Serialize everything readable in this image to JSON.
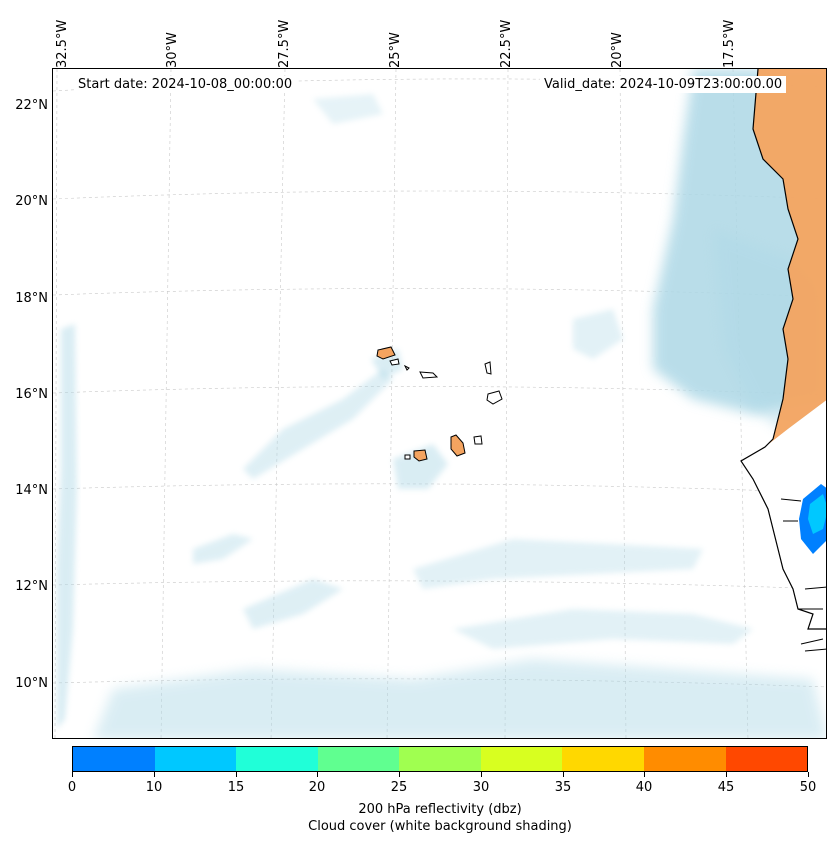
{
  "map": {
    "start_date": "Start date: 2024-10-08_00:00:00",
    "valid_date": "Valid_date: 2024-10-09T23:00:00.00",
    "lon_labels": [
      "32.5°W",
      "30°W",
      "27.5°W",
      "25°W",
      "22.5°W",
      "20°W",
      "17.5°W"
    ],
    "lat_labels": [
      "22°N",
      "20°N",
      "18°N",
      "16°N",
      "14°N",
      "12°N",
      "10°N"
    ],
    "land_color": "#f4a460",
    "cloud_color": "#add8e6",
    "coast_color": "#000000"
  },
  "colorbar": {
    "ticks": [
      "0",
      "10",
      "15",
      "20",
      "25",
      "30",
      "35",
      "40",
      "45",
      "50"
    ],
    "colors": [
      "#0080ff",
      "#00c8ff",
      "#20ffd8",
      "#60ff90",
      "#a0ff50",
      "#d8ff20",
      "#ffd800",
      "#ff8c00",
      "#ff4800"
    ],
    "title_line1": "200 hPa reflectivity (dbz)",
    "title_line2": "Cloud cover (white background shading)"
  }
}
